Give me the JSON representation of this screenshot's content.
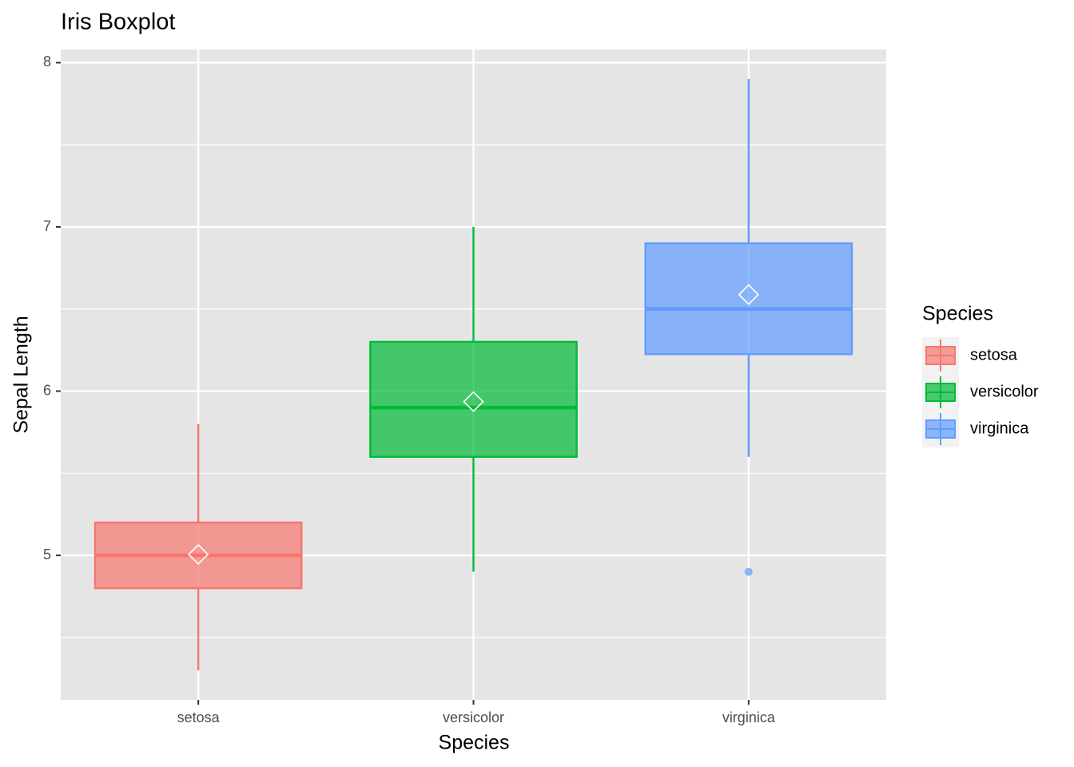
{
  "chart_data": {
    "type": "boxplot",
    "title": "Iris Boxplot",
    "x_label": "Species",
    "y_label": "Sepal Length",
    "legend_title": "Species",
    "legend_position": "right",
    "categories": [
      "setosa",
      "versicolor",
      "virginica"
    ],
    "series": [
      {
        "name": "setosa",
        "color": "#F8766D",
        "min": 4.3,
        "q1": 4.8,
        "median": 5.0,
        "q3": 5.2,
        "max": 5.8,
        "mean": 5.006,
        "outliers": []
      },
      {
        "name": "versicolor",
        "color": "#00BA38",
        "min": 4.9,
        "q1": 5.6,
        "median": 5.9,
        "q3": 6.3,
        "max": 7.0,
        "mean": 5.936,
        "outliers": []
      },
      {
        "name": "virginica",
        "color": "#619CFF",
        "min": 5.6,
        "q1": 6.225,
        "median": 6.5,
        "q3": 6.9,
        "max": 7.9,
        "mean": 6.588,
        "outliers": [
          4.9
        ]
      }
    ],
    "ylim": [
      4.12,
      8.08
    ],
    "yticks": [
      5,
      6,
      7,
      8
    ],
    "y_minor_ticks": [
      4.5,
      5.5,
      6.5,
      7.5
    ],
    "grid": true
  }
}
